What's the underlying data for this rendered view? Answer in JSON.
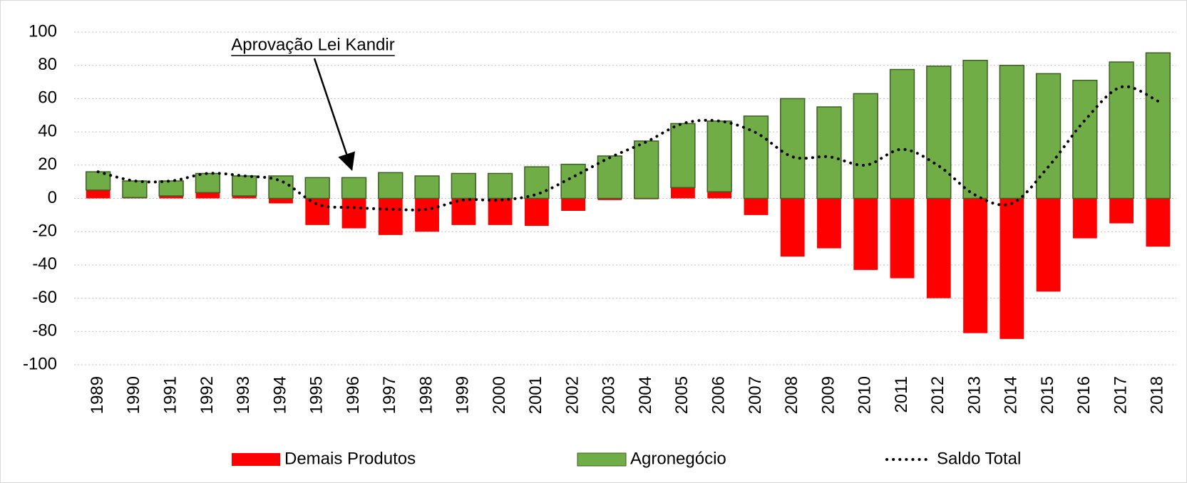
{
  "chart_data": {
    "type": "bar",
    "annotation": "Aprovação Lei Kandir",
    "annotation_category": "1996",
    "categories": [
      "1989",
      "1990",
      "1991",
      "1992",
      "1993",
      "1994",
      "1995",
      "1996",
      "1997",
      "1998",
      "1999",
      "2000",
      "2001",
      "2002",
      "2003",
      "2004",
      "2005",
      "2006",
      "2007",
      "2008",
      "2009",
      "2010",
      "2011",
      "2012",
      "2013",
      "2014",
      "2015",
      "2016",
      "2017",
      "2018"
    ],
    "series": [
      {
        "name": "Demais Produtos",
        "color": "#ff0000",
        "kind": "bar",
        "values": [
          5,
          0.5,
          1.5,
          3.5,
          1.5,
          -3,
          -16,
          -18,
          -22,
          -20,
          -16,
          -16,
          -16.5,
          -7.5,
          -1,
          -0.5,
          6.5,
          4,
          -10,
          -35,
          -30,
          -43,
          -48,
          -60,
          -81,
          -84.5,
          -56,
          -24,
          -15,
          -29
        ]
      },
      {
        "name": "Agronegócio",
        "color": "#70ad47",
        "kind": "bar",
        "values": [
          11,
          10,
          9,
          11.5,
          12,
          13.5,
          12.5,
          12.5,
          15.5,
          13.5,
          15,
          15,
          19,
          20.5,
          25.5,
          34.5,
          38.5,
          42.5,
          49.5,
          60,
          55,
          63,
          77.5,
          79.5,
          83,
          80,
          75,
          71,
          82,
          87.5
        ]
      },
      {
        "name": "Saldo Total",
        "color": "#000000",
        "kind": "line",
        "values": [
          16,
          10.5,
          10.5,
          15,
          13.5,
          10.5,
          -3.5,
          -5.5,
          -6.5,
          -6.5,
          -1,
          -1,
          2.5,
          13,
          24.5,
          34,
          45,
          46.5,
          39.5,
          25,
          25,
          20,
          29.5,
          19.5,
          2,
          -3,
          19,
          47,
          67,
          58.5
        ]
      }
    ],
    "ylim": [
      -100,
      100
    ],
    "yticks": [
      -100,
      -80,
      -60,
      -40,
      -20,
      0,
      20,
      40,
      60,
      80,
      100
    ],
    "grid": true,
    "legend": "bottom"
  }
}
